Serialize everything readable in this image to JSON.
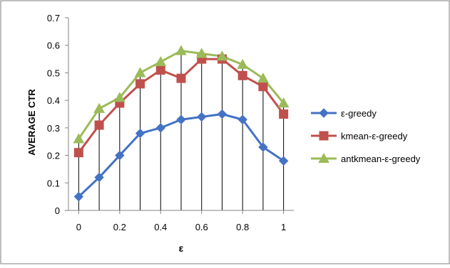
{
  "chart_data": {
    "type": "line",
    "title": "",
    "xlabel": "ε",
    "ylabel": "AVERAGE CTR",
    "x": [
      0,
      0.1,
      0.2,
      0.3,
      0.4,
      0.5,
      0.6,
      0.7,
      0.8,
      0.9,
      1.0
    ],
    "xticks": [
      "0",
      "0.2",
      "0.4",
      "0.6",
      "0.8",
      "1"
    ],
    "xtick_values": [
      0,
      0.2,
      0.4,
      0.6,
      0.8,
      1.0
    ],
    "xlim": [
      -0.05,
      1.05
    ],
    "ylim": [
      0,
      0.7
    ],
    "yticks": [
      "0",
      "0.1",
      "0.2",
      "0.3",
      "0.4",
      "0.5",
      "0.6",
      "0.7"
    ],
    "ytick_values": [
      0,
      0.1,
      0.2,
      0.3,
      0.4,
      0.5,
      0.6,
      0.7
    ],
    "grid": "vertical drop lines at each x value",
    "legend_position": "right",
    "series": [
      {
        "name": "ε-greedy",
        "color": "#4472C4",
        "marker": "diamond",
        "values": [
          0.05,
          0.12,
          0.2,
          0.28,
          0.3,
          0.33,
          0.34,
          0.35,
          0.33,
          0.23,
          0.18
        ]
      },
      {
        "name": "kmean-ε-greedy",
        "color": "#C0504D",
        "marker": "square",
        "values": [
          0.21,
          0.31,
          0.39,
          0.46,
          0.51,
          0.48,
          0.55,
          0.55,
          0.49,
          0.45,
          0.35
        ]
      },
      {
        "name": "antkmean-ε-greedy",
        "color": "#9BBB59",
        "marker": "triangle",
        "values": [
          0.26,
          0.37,
          0.41,
          0.5,
          0.54,
          0.58,
          0.57,
          0.56,
          0.53,
          0.48,
          0.39
        ]
      }
    ]
  }
}
